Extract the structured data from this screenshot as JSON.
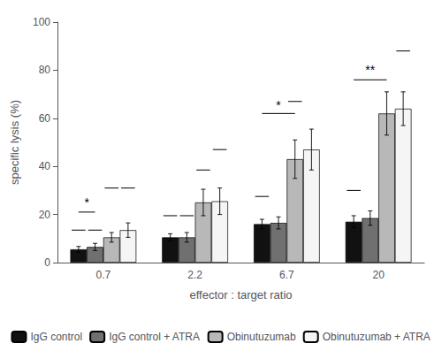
{
  "chart_data": {
    "type": "bar",
    "categories": [
      "0.7",
      "2.2",
      "6.7",
      "20"
    ],
    "xlabel": "effector : target ratio",
    "ylabel": "specific lysis (%)",
    "ylim": [
      0,
      100
    ],
    "yticks": [
      0,
      20,
      40,
      60,
      80,
      100
    ],
    "grid": false,
    "legend": "bottom",
    "series": [
      {
        "name": "IgG control",
        "color": "#111111",
        "values": [
          5.5,
          10.5,
          16.0,
          17.0
        ],
        "errors": [
          1.2,
          1.5,
          2.0,
          2.5
        ]
      },
      {
        "name": "IgG control + ATRA",
        "color": "#707070",
        "values": [
          6.5,
          10.5,
          16.5,
          18.5
        ],
        "errors": [
          1.5,
          2.0,
          2.5,
          3.0
        ]
      },
      {
        "name": "Obinutuzumab",
        "color": "#b8b8b8",
        "values": [
          10.5,
          25.0,
          43.0,
          62.0
        ],
        "errors": [
          2.0,
          5.5,
          8.0,
          9.0
        ]
      },
      {
        "name": "Obinutuzumab + ATRA",
        "color": "#f5f5f5",
        "values": [
          13.5,
          25.5,
          47.0,
          64.0
        ],
        "errors": [
          3.0,
          5.5,
          8.5,
          7.0
        ]
      }
    ],
    "annotations": [
      {
        "text": "*",
        "category": "0.7",
        "from": "IgG control",
        "to": "IgG control + ATRA",
        "y": 21,
        "text_y": 22.5
      },
      {
        "text": "*",
        "category": "6.7",
        "from": "IgG control",
        "to": "Obinutuzumab",
        "y": 62,
        "text_y": 63.0
      },
      {
        "text": "**",
        "category": "20",
        "from": "IgG control",
        "to": "Obinutuzumab",
        "y": 76,
        "text_y": 77.5
      }
    ],
    "mean_lines": [
      {
        "category": "0.7",
        "series": "IgG control",
        "y": 13.5
      },
      {
        "category": "0.7",
        "series": "IgG control + ATRA",
        "y": 13.5
      },
      {
        "category": "0.7",
        "series": "Obinutuzumab",
        "y": 31.0
      },
      {
        "category": "0.7",
        "series": "Obinutuzumab + ATRA",
        "y": 31.0
      },
      {
        "category": "2.2",
        "series": "IgG control",
        "y": 19.5
      },
      {
        "category": "2.2",
        "series": "IgG control + ATRA",
        "y": 19.5
      },
      {
        "category": "2.2",
        "series": "Obinutuzumab",
        "y": 38.5
      },
      {
        "category": "2.2",
        "series": "Obinutuzumab + ATRA",
        "y": 47.0
      },
      {
        "category": "6.7",
        "series": "IgG control",
        "y": 27.5
      },
      {
        "category": "6.7",
        "series": "Obinutuzumab",
        "y": 67.0
      },
      {
        "category": "20",
        "series": "IgG control",
        "y": 30.0
      },
      {
        "category": "20",
        "series": "Obinutuzumab + ATRA",
        "y": 88.0
      }
    ]
  }
}
